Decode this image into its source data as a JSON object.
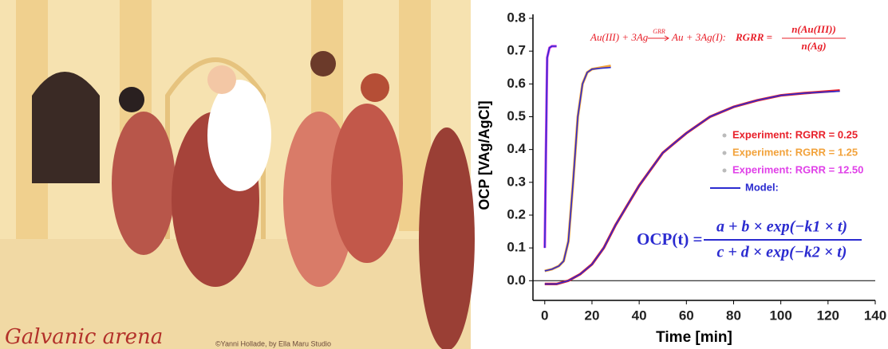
{
  "illustration": {
    "title": "Galvanic arena",
    "credit": "©Yanni Hollade, by Ella Maru Studio"
  },
  "chart_data": {
    "type": "line",
    "xlabel": "Time [min]",
    "ylabel": "OCP [VAg/AgCl]",
    "xlim": [
      -5,
      140
    ],
    "xticks": [
      0,
      20,
      40,
      60,
      80,
      100,
      120,
      140
    ],
    "ylim": [
      -0.06,
      0.8
    ],
    "yticks": [
      {
        "value": 0,
        "label": "0.0"
      },
      0.1,
      0.2,
      0.3,
      0.4,
      0.5,
      0.6,
      0.7,
      0.8
    ],
    "annotations": {
      "reaction_left": "Au(III) + 3Ag",
      "reaction_arrow": "GRR",
      "reaction_right": "Au + 3Ag(I):",
      "ratio": "RGRR =",
      "ratio_numerator": "n(Au(III))",
      "ratio_denominator": "n(Ag)",
      "model": "OCP(t) =",
      "model_numerator": "a + b × exp(−k1 × t)",
      "model_denominator": "c + d × exp(−k2 × t)"
    },
    "series": [
      {
        "name": "Experiment: RGRR = 0.25",
        "color": "#e8202a",
        "x": [
          0,
          5,
          10,
          15,
          20,
          25,
          30,
          35,
          40,
          45,
          50,
          55,
          60,
          70,
          80,
          90,
          100,
          110,
          125
        ],
        "values": [
          -0.01,
          -0.01,
          0.0,
          0.02,
          0.05,
          0.1,
          0.17,
          0.23,
          0.29,
          0.34,
          0.39,
          0.42,
          0.45,
          0.5,
          0.53,
          0.55,
          0.565,
          0.572,
          0.58
        ]
      },
      {
        "name": "Experiment: RGRR = 1.25",
        "color": "#f2a23a",
        "x": [
          0,
          3,
          6,
          8,
          10,
          12,
          14,
          16,
          18,
          20,
          24,
          28
        ],
        "values": [
          0.03,
          0.035,
          0.045,
          0.06,
          0.12,
          0.3,
          0.5,
          0.6,
          0.635,
          0.645,
          0.65,
          0.655
        ]
      },
      {
        "name": "Experiment: RGRR = 12.50",
        "color": "#e040e8",
        "x": [
          0,
          0.5,
          1,
          2,
          3,
          5
        ],
        "values": [
          0.1,
          0.4,
          0.68,
          0.71,
          0.715,
          0.715
        ]
      },
      {
        "name": "Model:",
        "color": "#2b2bd0",
        "x": [
          0,
          0.5,
          1,
          2,
          3,
          5,
          null,
          0,
          3,
          6,
          8,
          10,
          12,
          14,
          16,
          18,
          20,
          24,
          28,
          null,
          0,
          5,
          10,
          15,
          20,
          25,
          30,
          35,
          40,
          45,
          50,
          55,
          60,
          70,
          80,
          90,
          100,
          110,
          125
        ],
        "values": [
          0.1,
          0.4,
          0.68,
          0.71,
          0.715,
          0.715,
          null,
          0.03,
          0.035,
          0.045,
          0.06,
          0.12,
          0.3,
          0.5,
          0.6,
          0.635,
          0.645,
          0.648,
          0.65,
          null,
          -0.01,
          -0.01,
          0.0,
          0.02,
          0.05,
          0.1,
          0.17,
          0.23,
          0.29,
          0.34,
          0.39,
          0.42,
          0.45,
          0.5,
          0.53,
          0.55,
          0.565,
          0.572,
          0.578
        ]
      }
    ]
  }
}
